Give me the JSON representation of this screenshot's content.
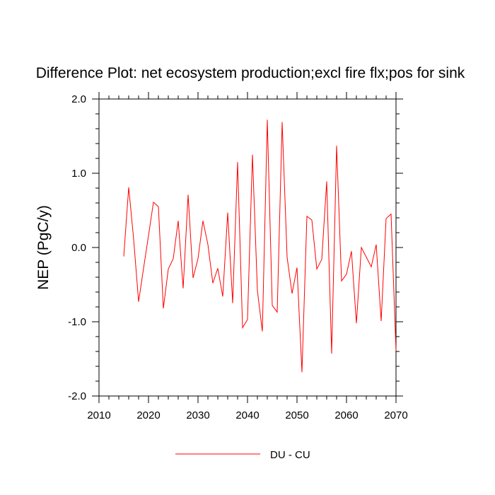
{
  "chart_data": {
    "type": "line",
    "title": "Difference Plot: net ecosystem production;excl fire flx;pos for sink",
    "xlabel": "",
    "ylabel": "NEP  (PgC/y)",
    "xlim": [
      2010,
      2070
    ],
    "ylim": [
      -2.0,
      2.0
    ],
    "x_ticks": [
      2010,
      2020,
      2030,
      2040,
      2050,
      2060,
      2070
    ],
    "x_tick_labels": [
      "2010",
      "2020",
      "2030",
      "2040",
      "2050",
      "2060",
      "2070"
    ],
    "y_ticks": [
      -2.0,
      -1.0,
      0.0,
      1.0,
      2.0
    ],
    "y_tick_labels": [
      "-2.0",
      "-1.0",
      "0.0",
      "1.0",
      "2.0"
    ],
    "legend_position": "bottom-center",
    "series": [
      {
        "name": "DU - CU",
        "color": "#ff0000",
        "x": [
          2015,
          2016,
          2017,
          2018,
          2019,
          2020,
          2021,
          2022,
          2023,
          2024,
          2025,
          2026,
          2027,
          2028,
          2029,
          2030,
          2031,
          2032,
          2033,
          2034,
          2035,
          2036,
          2037,
          2038,
          2039,
          2040,
          2041,
          2042,
          2043,
          2044,
          2045,
          2046,
          2047,
          2048,
          2049,
          2050,
          2051,
          2052,
          2053,
          2054,
          2055,
          2056,
          2057,
          2058,
          2059,
          2060,
          2061,
          2062,
          2063,
          2064,
          2065,
          2066,
          2067,
          2068,
          2069,
          2070
        ],
        "values": [
          -0.12,
          0.81,
          0.11,
          -0.73,
          -0.28,
          0.16,
          0.61,
          0.55,
          -0.82,
          -0.29,
          -0.15,
          0.36,
          -0.55,
          0.71,
          -0.41,
          -0.15,
          0.36,
          0.04,
          -0.48,
          -0.28,
          -0.66,
          0.47,
          -0.75,
          1.15,
          -1.08,
          -0.97,
          1.25,
          -0.58,
          -1.13,
          1.72,
          -0.78,
          -0.87,
          1.69,
          -0.13,
          -0.62,
          -0.27,
          -1.68,
          0.42,
          0.37,
          -0.29,
          -0.16,
          0.89,
          -1.43,
          1.37,
          -0.45,
          -0.36,
          -0.05,
          -1.02,
          0.0,
          -0.13,
          -0.26,
          0.04,
          -0.99,
          0.39,
          0.45,
          -1.39
        ]
      }
    ]
  }
}
